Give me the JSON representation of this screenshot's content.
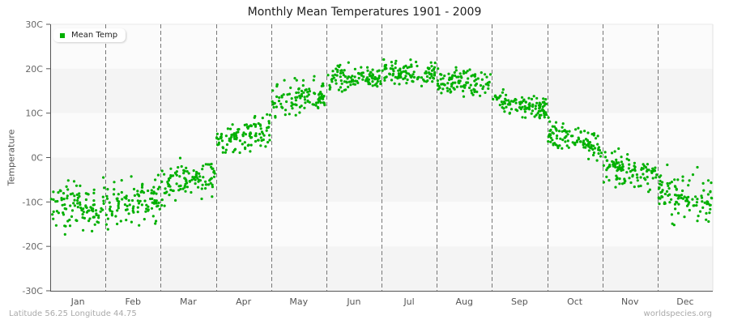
{
  "chart_data": {
    "type": "scatter",
    "title": "Monthly Mean Temperatures 1901 - 2009",
    "xlabel": "",
    "ylabel": "Temperature",
    "categories": [
      "Jan",
      "Feb",
      "Mar",
      "Apr",
      "May",
      "Jun",
      "Jul",
      "Aug",
      "Sep",
      "Oct",
      "Nov",
      "Dec"
    ],
    "yticks": [
      "30C",
      "20C",
      "10C",
      "0C",
      "-10C",
      "-20C",
      "-30C"
    ],
    "ylim": [
      -30,
      30
    ],
    "grid": "alternating horizontal bands, dashed vertical month separators",
    "legend": {
      "position": "top-left",
      "entries": [
        {
          "name": "Mean Temp",
          "color": "#00b000"
        }
      ]
    },
    "series": [
      {
        "name": "Mean Temp",
        "points_per_month": 109,
        "monthly_summary": [
          {
            "month": "Jan",
            "mean": -11,
            "min": -21,
            "max": -4
          },
          {
            "month": "Feb",
            "mean": -10,
            "min": -19,
            "max": -3
          },
          {
            "month": "Mar",
            "mean": -5,
            "min": -12,
            "max": 1
          },
          {
            "month": "Apr",
            "mean": 5,
            "min": -2,
            "max": 10
          },
          {
            "month": "May",
            "mean": 13,
            "min": 6,
            "max": 19
          },
          {
            "month": "Jun",
            "mean": 18,
            "min": 13,
            "max": 22
          },
          {
            "month": "Jul",
            "mean": 19,
            "min": 15,
            "max": 23
          },
          {
            "month": "Aug",
            "mean": 17,
            "min": 13,
            "max": 22
          },
          {
            "month": "Sep",
            "mean": 12,
            "min": 7,
            "max": 16
          },
          {
            "month": "Oct",
            "mean": 4,
            "min": -2,
            "max": 9
          },
          {
            "month": "Nov",
            "mean": -3,
            "min": -9,
            "max": 2
          },
          {
            "month": "Dec",
            "mean": -9,
            "min": -18,
            "max": -1
          }
        ]
      }
    ]
  },
  "footer": {
    "location": "Latitude 56.25 Longitude 44.75",
    "source": "worldspecies.org"
  },
  "colors": {
    "point": "#00b000",
    "band_light": "#fbfbfb",
    "band_dark": "#f4f4f4",
    "divider": "#777777",
    "axis": "#555555"
  }
}
